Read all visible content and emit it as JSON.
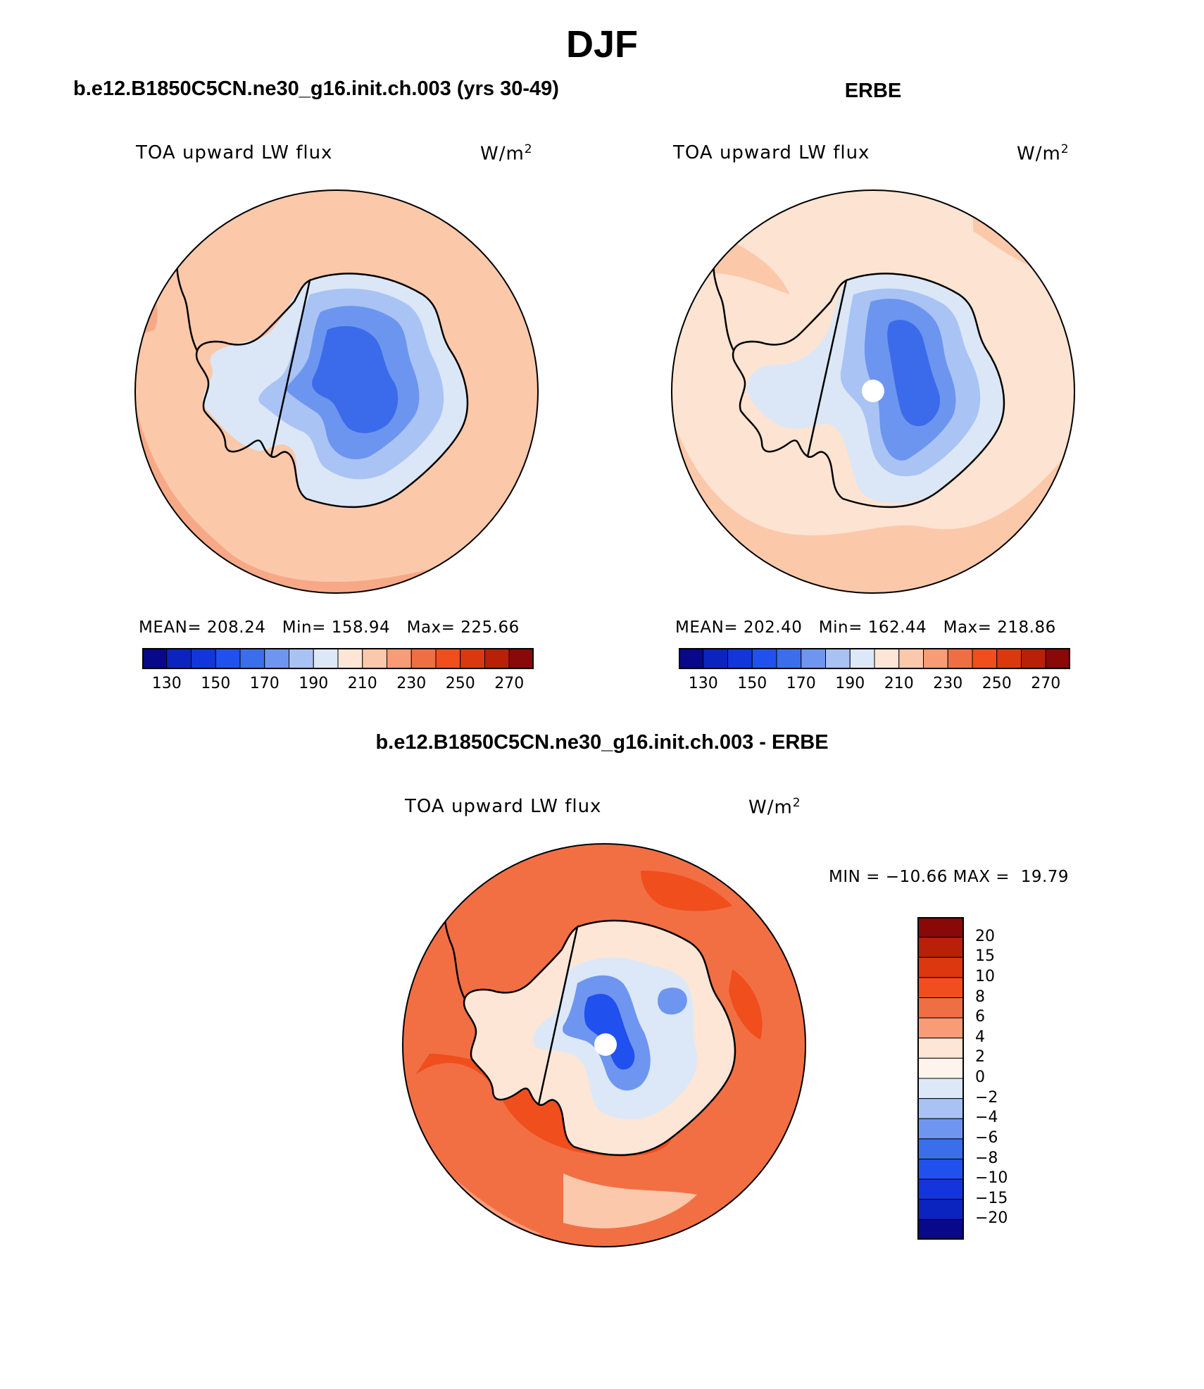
{
  "title": "DJF",
  "panels": [
    {
      "heading": "b.e12.B1850C5CN.ne30_g16.init.ch.003 (yrs 30-49)",
      "variable": "TOA upward LW flux",
      "units": "W/m",
      "units_exp": "2",
      "stats": "MEAN= 208.24   Min= 158.94   Max= 225.66"
    },
    {
      "heading": "ERBE",
      "variable": "TOA upward LW flux",
      "units": "W/m",
      "units_exp": "2",
      "stats": "MEAN= 202.40   Min= 162.44   Max= 218.86"
    },
    {
      "heading": "b.e12.B1850C5CN.ne30_g16.init.ch.003 - ERBE",
      "variable": "TOA upward LW flux",
      "units": "W/m",
      "units_exp": "2",
      "stats": "MIN = −10.66 MAX =  19.79"
    }
  ],
  "abs_colorbar": {
    "colors": [
      "#08088a",
      "#0b24c0",
      "#1236dc",
      "#2050ee",
      "#3c6eec",
      "#6e96f0",
      "#a8c2f4",
      "#dce8f8",
      "#fde6d6",
      "#fcc8ac",
      "#f89c78",
      "#f06e44",
      "#f04e1c",
      "#dc3810",
      "#b82008",
      "#8a0808"
    ],
    "tick_labels": [
      "130",
      "150",
      "170",
      "190",
      "210",
      "230",
      "250",
      "270"
    ]
  },
  "diff_colorbar": {
    "colors": [
      "#8a0808",
      "#b82008",
      "#dc3810",
      "#f04e1c",
      "#f06e44",
      "#f89c78",
      "#fde6d6",
      "#fff4ec",
      "#dce8f8",
      "#a8c2f4",
      "#6e96f0",
      "#3c6eec",
      "#2050ee",
      "#1236dc",
      "#0b24c0",
      "#08088a"
    ],
    "tick_labels": [
      "20",
      "15",
      "10",
      "8",
      "6",
      "4",
      "2",
      "0",
      "−2",
      "−4",
      "−6",
      "−8",
      "−10",
      "−15",
      "−20"
    ]
  },
  "maps": {
    "model": {
      "ocean": "#fbc8aa",
      "rim": "#f7a987",
      "land_outer": "#dbe7f7",
      "land_mid": "#a9c3f4",
      "land_inner": "#6c95ef",
      "core": "#3b6bea",
      "pole_missing": false
    },
    "obs": {
      "ocean": "#fde3d1",
      "rim": "#fbc8aa",
      "land_outer": "#dbe7f7",
      "land_mid": "#a9c3f4",
      "land_inner": "#6c95ef",
      "core": "#3b6bea",
      "pole_missing": true
    },
    "diff": {
      "ocean": "#f26f44",
      "rim": "#f04e1c",
      "land_outer": "#fde6d6",
      "land_mid": "#dce8f8",
      "land_inner": "#6e96f0",
      "core": "#2050ee",
      "pole_missing": true
    }
  }
}
